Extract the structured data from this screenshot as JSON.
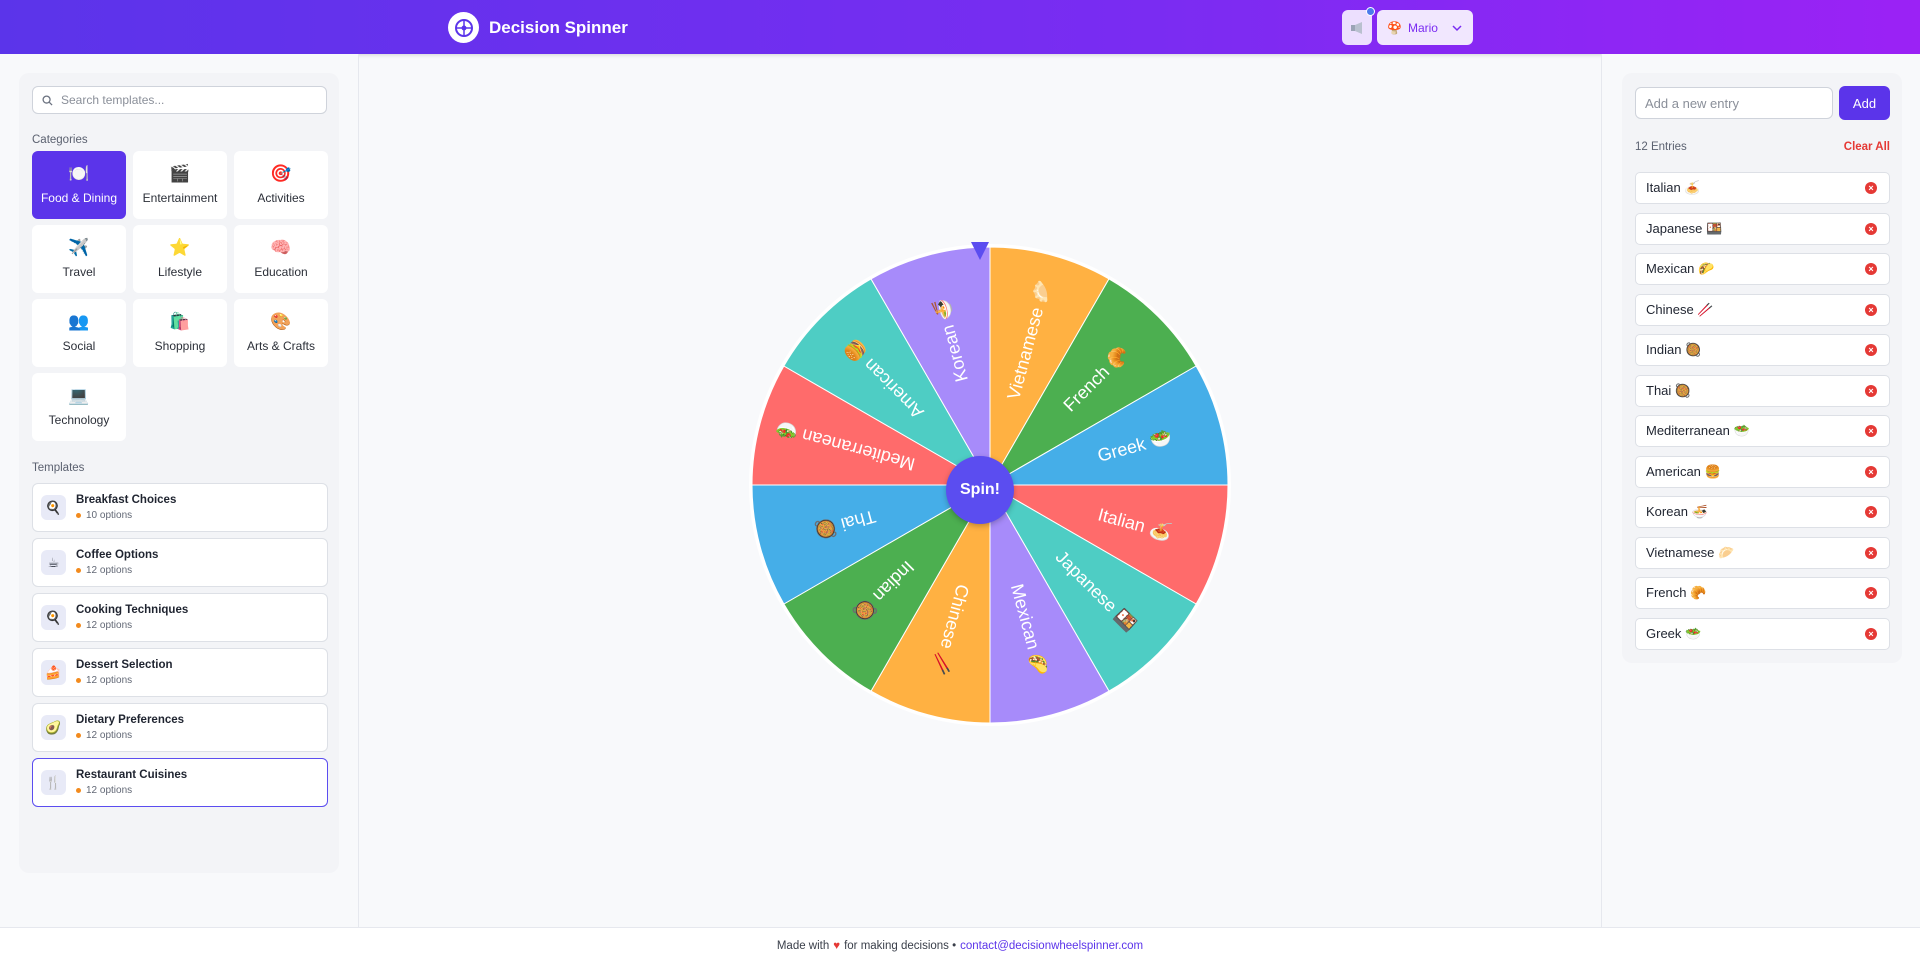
{
  "header": {
    "title": "Decision Spinner",
    "user_name": "Mario",
    "user_icon": "🍄"
  },
  "sidebar": {
    "search_placeholder": "Search templates...",
    "categories_title": "Categories",
    "categories": [
      {
        "label": "Food & Dining",
        "icon": "🍽️"
      },
      {
        "label": "Entertainment",
        "icon": "🎬"
      },
      {
        "label": "Activities",
        "icon": "🎯"
      },
      {
        "label": "Travel",
        "icon": "✈️"
      },
      {
        "label": "Lifestyle",
        "icon": "⭐"
      },
      {
        "label": "Education",
        "icon": "🧠"
      },
      {
        "label": "Social",
        "icon": "👥"
      },
      {
        "label": "Shopping",
        "icon": "🛍️"
      },
      {
        "label": "Arts & Crafts",
        "icon": "🎨"
      },
      {
        "label": "Technology",
        "icon": "💻"
      }
    ],
    "templates_title": "Templates",
    "templates": [
      {
        "name": "Breakfast Choices",
        "options": "10 options",
        "icon": "🍳"
      },
      {
        "name": "Coffee Options",
        "options": "12 options",
        "icon": "☕"
      },
      {
        "name": "Cooking Techniques",
        "options": "12 options",
        "icon": "🍳"
      },
      {
        "name": "Dessert Selection",
        "options": "12 options",
        "icon": "🍰"
      },
      {
        "name": "Dietary Preferences",
        "options": "12 options",
        "icon": "🥑"
      },
      {
        "name": "Restaurant Cuisines",
        "options": "12 options",
        "icon": "🍴"
      }
    ]
  },
  "wheel": {
    "spin_label": "Spin!",
    "segments": [
      {
        "label": "Italian 🍝",
        "color": "#ff6b6b"
      },
      {
        "label": "Japanese 🍱",
        "color": "#4ecdc4"
      },
      {
        "label": "Mexican 🌮",
        "color": "#a78bfa"
      },
      {
        "label": "Chinese 🥢",
        "color": "#ffb142"
      },
      {
        "label": "Indian 🥘",
        "color": "#4caf50"
      },
      {
        "label": "Thai 🥘",
        "color": "#45aee8"
      },
      {
        "label": "Mediterranean 🥗",
        "color": "#ff6b6b"
      },
      {
        "label": "American 🍔",
        "color": "#4ecdc4"
      },
      {
        "label": "Korean 🍜",
        "color": "#a78bfa"
      },
      {
        "label": "Vietnamese 🥟",
        "color": "#ffb142"
      },
      {
        "label": "French 🥐",
        "color": "#4caf50"
      },
      {
        "label": "Greek 🥗",
        "color": "#45aee8"
      }
    ]
  },
  "entries": {
    "input_placeholder": "Add a new entry",
    "add_label": "Add",
    "count_label": "12 Entries",
    "clear_label": "Clear All",
    "items": [
      "Italian 🍝",
      "Japanese 🍱",
      "Mexican 🌮",
      "Chinese 🥢",
      "Indian 🥘",
      "Thai 🥘",
      "Mediterranean 🥗",
      "American 🍔",
      "Korean 🍜",
      "Vietnamese 🥟",
      "French 🥐",
      "Greek 🥗"
    ]
  },
  "footer": {
    "text_before": "Made with",
    "heart": "♥",
    "text_after": "for making decisions •",
    "email": "contact@decisionwheelspinner.com"
  }
}
